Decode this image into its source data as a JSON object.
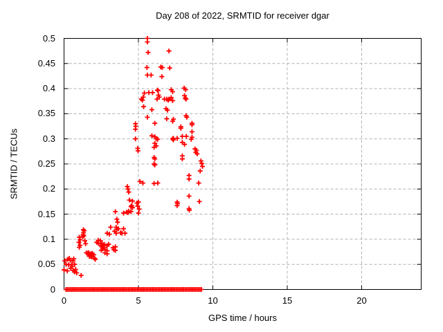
{
  "chart_data": {
    "type": "scatter",
    "title": "Day 208 of 2022, SRMTID for receiver dgar",
    "xlabel": "GPS time / hours",
    "ylabel": "SRMTID / TECUs",
    "xlim": [
      0,
      24
    ],
    "ylim": [
      0,
      0.5
    ],
    "xticks": [
      0,
      5,
      10,
      15,
      20
    ],
    "xtick_labels": [
      "0",
      "5",
      "10",
      "15",
      "20"
    ],
    "yticks": [
      0,
      0.05,
      0.1,
      0.15,
      0.2,
      0.25,
      0.3,
      0.35,
      0.4,
      0.45,
      0.5
    ],
    "ytick_labels": [
      "0",
      "0.05",
      "0.1",
      "0.15",
      "0.2",
      "0.25",
      "0.3",
      "0.35",
      "0.4",
      "0.45",
      "0.5"
    ],
    "grid": true,
    "grid_style": "dashed",
    "grid_color": "#b0b0b0",
    "legend_position": "none",
    "marker": {
      "shape": "plus",
      "color": "#ff0000",
      "size": 7
    },
    "baseline_run": {
      "y": 0,
      "start": 0.13,
      "end": 9.3,
      "step": 0.1
    },
    "points": [
      [
        0.0,
        0.039
      ],
      [
        0.05,
        0.057
      ],
      [
        0.14,
        0.05
      ],
      [
        0.22,
        0.037
      ],
      [
        0.24,
        0.06
      ],
      [
        0.31,
        0.049
      ],
      [
        0.35,
        0.062
      ],
      [
        0.42,
        0.058
      ],
      [
        0.45,
        0.042
      ],
      [
        0.52,
        0.05
      ],
      [
        0.55,
        0.046
      ],
      [
        0.61,
        0.057
      ],
      [
        0.62,
        0.038
      ],
      [
        0.65,
        0.061
      ],
      [
        0.7,
        0.035
      ],
      [
        0.71,
        0.05
      ],
      [
        0.78,
        0.04
      ],
      [
        0.85,
        0.033
      ],
      [
        1.15,
        0.028
      ],
      [
        1.0,
        0.094
      ],
      [
        1.03,
        0.104
      ],
      [
        1.03,
        0.084
      ],
      [
        1.08,
        0.099
      ],
      [
        1.08,
        0.088
      ],
      [
        1.25,
        0.105
      ],
      [
        1.28,
        0.109
      ],
      [
        1.3,
        0.119
      ],
      [
        1.3,
        0.113
      ],
      [
        1.32,
        0.107
      ],
      [
        1.35,
        0.117
      ],
      [
        1.4,
        0.097
      ],
      [
        1.45,
        0.091
      ],
      [
        1.5,
        0.073
      ],
      [
        1.6,
        0.072
      ],
      [
        1.65,
        0.073
      ],
      [
        1.7,
        0.068
      ],
      [
        1.7,
        0.066
      ],
      [
        1.75,
        0.071
      ],
      [
        1.8,
        0.066
      ],
      [
        1.85,
        0.071
      ],
      [
        1.85,
        0.065
      ],
      [
        1.9,
        0.072
      ],
      [
        1.95,
        0.069
      ],
      [
        2.0,
        0.069
      ],
      [
        2.05,
        0.062
      ],
      [
        2.1,
        0.06
      ],
      [
        2.2,
        0.094
      ],
      [
        2.3,
        0.098
      ],
      [
        2.3,
        0.092
      ],
      [
        2.45,
        0.097
      ],
      [
        2.45,
        0.091
      ],
      [
        2.5,
        0.087
      ],
      [
        2.5,
        0.078
      ],
      [
        2.55,
        0.092
      ],
      [
        2.55,
        0.085
      ],
      [
        2.6,
        0.081
      ],
      [
        2.65,
        0.088
      ],
      [
        2.7,
        0.09
      ],
      [
        2.7,
        0.083
      ],
      [
        2.75,
        0.079
      ],
      [
        2.75,
        0.073
      ],
      [
        2.9,
        0.087
      ],
      [
        2.9,
        0.077
      ],
      [
        2.9,
        0.071
      ],
      [
        3.0,
        0.09
      ],
      [
        2.9,
        0.112
      ],
      [
        3.05,
        0.11
      ],
      [
        3.13,
        0.124
      ],
      [
        3.3,
        0.083
      ],
      [
        3.35,
        0.079
      ],
      [
        3.4,
        0.116
      ],
      [
        3.45,
        0.085
      ],
      [
        3.45,
        0.078
      ],
      [
        3.45,
        0.155
      ],
      [
        3.5,
        0.124
      ],
      [
        3.5,
        0.112
      ],
      [
        3.55,
        0.14
      ],
      [
        3.55,
        0.12
      ],
      [
        3.6,
        0.134
      ],
      [
        3.65,
        0.121
      ],
      [
        3.8,
        0.113
      ],
      [
        3.9,
        0.112
      ],
      [
        4.0,
        0.152
      ],
      [
        4.0,
        0.121
      ],
      [
        4.1,
        0.112
      ],
      [
        4.2,
        0.154
      ],
      [
        4.25,
        0.205
      ],
      [
        4.3,
        0.2
      ],
      [
        4.3,
        0.153
      ],
      [
        4.35,
        0.194
      ],
      [
        4.35,
        0.156
      ],
      [
        4.4,
        0.178
      ],
      [
        4.5,
        0.165
      ],
      [
        4.5,
        0.155
      ],
      [
        4.55,
        0.167
      ],
      [
        4.6,
        0.176
      ],
      [
        4.6,
        0.163
      ],
      [
        4.8,
        0.33
      ],
      [
        4.82,
        0.325
      ],
      [
        4.8,
        0.319
      ],
      [
        4.8,
        0.3
      ],
      [
        4.95,
        0.281
      ],
      [
        4.97,
        0.276
      ],
      [
        4.9,
        0.172
      ],
      [
        4.95,
        0.166
      ],
      [
        5.0,
        0.174
      ],
      [
        5.05,
        0.16
      ],
      [
        5.0,
        0.152
      ],
      [
        5.1,
        0.215
      ],
      [
        5.3,
        0.212
      ],
      [
        5.2,
        0.379
      ],
      [
        5.27,
        0.377
      ],
      [
        5.32,
        0.383
      ],
      [
        5.35,
        0.364
      ],
      [
        5.4,
        0.391
      ],
      [
        5.6,
        0.5
      ],
      [
        5.6,
        0.493
      ],
      [
        5.65,
        0.472
      ],
      [
        5.57,
        0.442
      ],
      [
        5.6,
        0.427
      ],
      [
        5.85,
        0.427
      ],
      [
        5.6,
        0.343
      ],
      [
        5.7,
        0.392
      ],
      [
        5.95,
        0.392
      ],
      [
        5.9,
        0.358
      ],
      [
        5.9,
        0.306
      ],
      [
        6.05,
        0.283
      ],
      [
        6.05,
        0.263
      ],
      [
        6.05,
        0.25
      ],
      [
        6.05,
        0.211
      ],
      [
        6.1,
        0.331
      ],
      [
        6.1,
        0.304
      ],
      [
        6.1,
        0.291
      ],
      [
        6.1,
        0.26
      ],
      [
        6.1,
        0.248
      ],
      [
        6.2,
        0.3
      ],
      [
        6.2,
        0.286
      ],
      [
        6.25,
        0.379
      ],
      [
        6.28,
        0.397
      ],
      [
        6.32,
        0.396
      ],
      [
        6.3,
        0.299
      ],
      [
        6.3,
        0.212
      ],
      [
        6.35,
        0.387
      ],
      [
        6.4,
        0.383
      ],
      [
        6.5,
        0.443
      ],
      [
        6.57,
        0.424
      ],
      [
        6.6,
        0.442
      ],
      [
        6.75,
        0.379
      ],
      [
        6.85,
        0.36
      ],
      [
        6.9,
        0.379
      ],
      [
        6.9,
        0.34
      ],
      [
        6.95,
        0.357
      ],
      [
        7.0,
        0.377
      ],
      [
        7.05,
        0.475
      ],
      [
        7.05,
        0.379
      ],
      [
        7.1,
        0.441
      ],
      [
        7.2,
        0.398
      ],
      [
        7.2,
        0.382
      ],
      [
        7.3,
        0.394
      ],
      [
        7.3,
        0.376
      ],
      [
        7.3,
        0.335
      ],
      [
        7.3,
        0.3
      ],
      [
        7.35,
        0.339
      ],
      [
        7.35,
        0.301
      ],
      [
        7.35,
        0.298
      ],
      [
        7.6,
        0.301
      ],
      [
        7.6,
        0.174
      ],
      [
        7.63,
        0.171
      ],
      [
        7.6,
        0.167
      ],
      [
        7.85,
        0.324
      ],
      [
        7.85,
        0.321
      ],
      [
        7.95,
        0.305
      ],
      [
        7.95,
        0.293
      ],
      [
        7.95,
        0.266
      ],
      [
        7.95,
        0.26
      ],
      [
        8.07,
        0.401
      ],
      [
        8.17,
        0.398
      ],
      [
        8.1,
        0.386
      ],
      [
        8.15,
        0.381
      ],
      [
        8.2,
        0.379
      ],
      [
        8.2,
        0.346
      ],
      [
        8.25,
        0.343
      ],
      [
        8.1,
        0.289
      ],
      [
        8.22,
        0.305
      ],
      [
        8.4,
        0.227
      ],
      [
        8.4,
        0.22
      ],
      [
        8.4,
        0.186
      ],
      [
        8.4,
        0.161
      ],
      [
        8.42,
        0.158
      ],
      [
        8.55,
        0.299
      ],
      [
        8.6,
        0.331
      ],
      [
        8.6,
        0.328
      ],
      [
        8.6,
        0.314
      ],
      [
        8.6,
        0.303
      ],
      [
        8.8,
        0.28
      ],
      [
        8.85,
        0.273
      ],
      [
        8.9,
        0.277
      ],
      [
        8.95,
        0.27
      ],
      [
        9.05,
        0.212
      ],
      [
        9.1,
        0.175
      ],
      [
        9.15,
        0.236
      ],
      [
        9.2,
        0.256
      ],
      [
        9.25,
        0.251
      ],
      [
        9.3,
        0.245
      ]
    ]
  }
}
